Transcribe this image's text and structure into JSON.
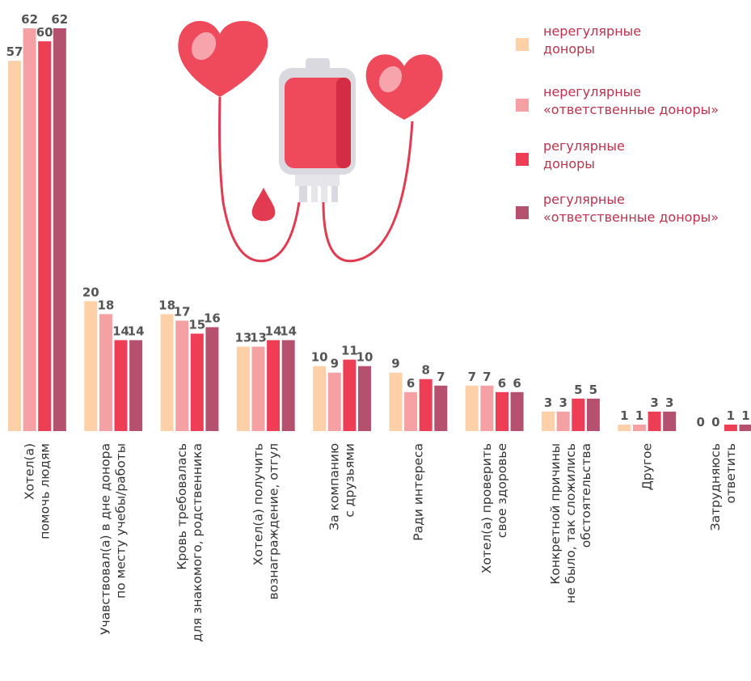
{
  "chart_data": {
    "type": "bar",
    "categories": [
      "Хотел(а)\nпомочь людям",
      "Учавствовал(а) в дне донора\nпо месту учебы/работы",
      "Кровь требовалась\nдля знакомого, родственника",
      "Хотел(а) получить\nвознаграждение, отгул",
      "За компанию\nс друзьями",
      "Ради интереса",
      "Хотел(а) проверить\nсвое здоровье",
      "Конкретной причины\nне было, так сложились\nобстоятельства",
      "Другое",
      "Затрудняюсь\nответить"
    ],
    "series": [
      {
        "name": "нерегулярные\nдоноры",
        "color": "#fdd0a8",
        "values": [
          57,
          20,
          18,
          13,
          10,
          9,
          7,
          3,
          1,
          0
        ]
      },
      {
        "name": "нерегулярные\n«ответственные доноры»",
        "color": "#f5a0a3",
        "values": [
          62,
          18,
          17,
          13,
          9,
          6,
          7,
          3,
          1,
          0
        ]
      },
      {
        "name": "регулярные\nдоноры",
        "color": "#ee3e55",
        "values": [
          60,
          14,
          15,
          14,
          11,
          8,
          6,
          5,
          3,
          1
        ]
      },
      {
        "name": "регулярные\n«ответственные доноры»",
        "color": "#b5506e",
        "values": [
          62,
          14,
          16,
          14,
          10,
          7,
          6,
          5,
          3,
          1
        ]
      }
    ],
    "legend": "top-right"
  }
}
